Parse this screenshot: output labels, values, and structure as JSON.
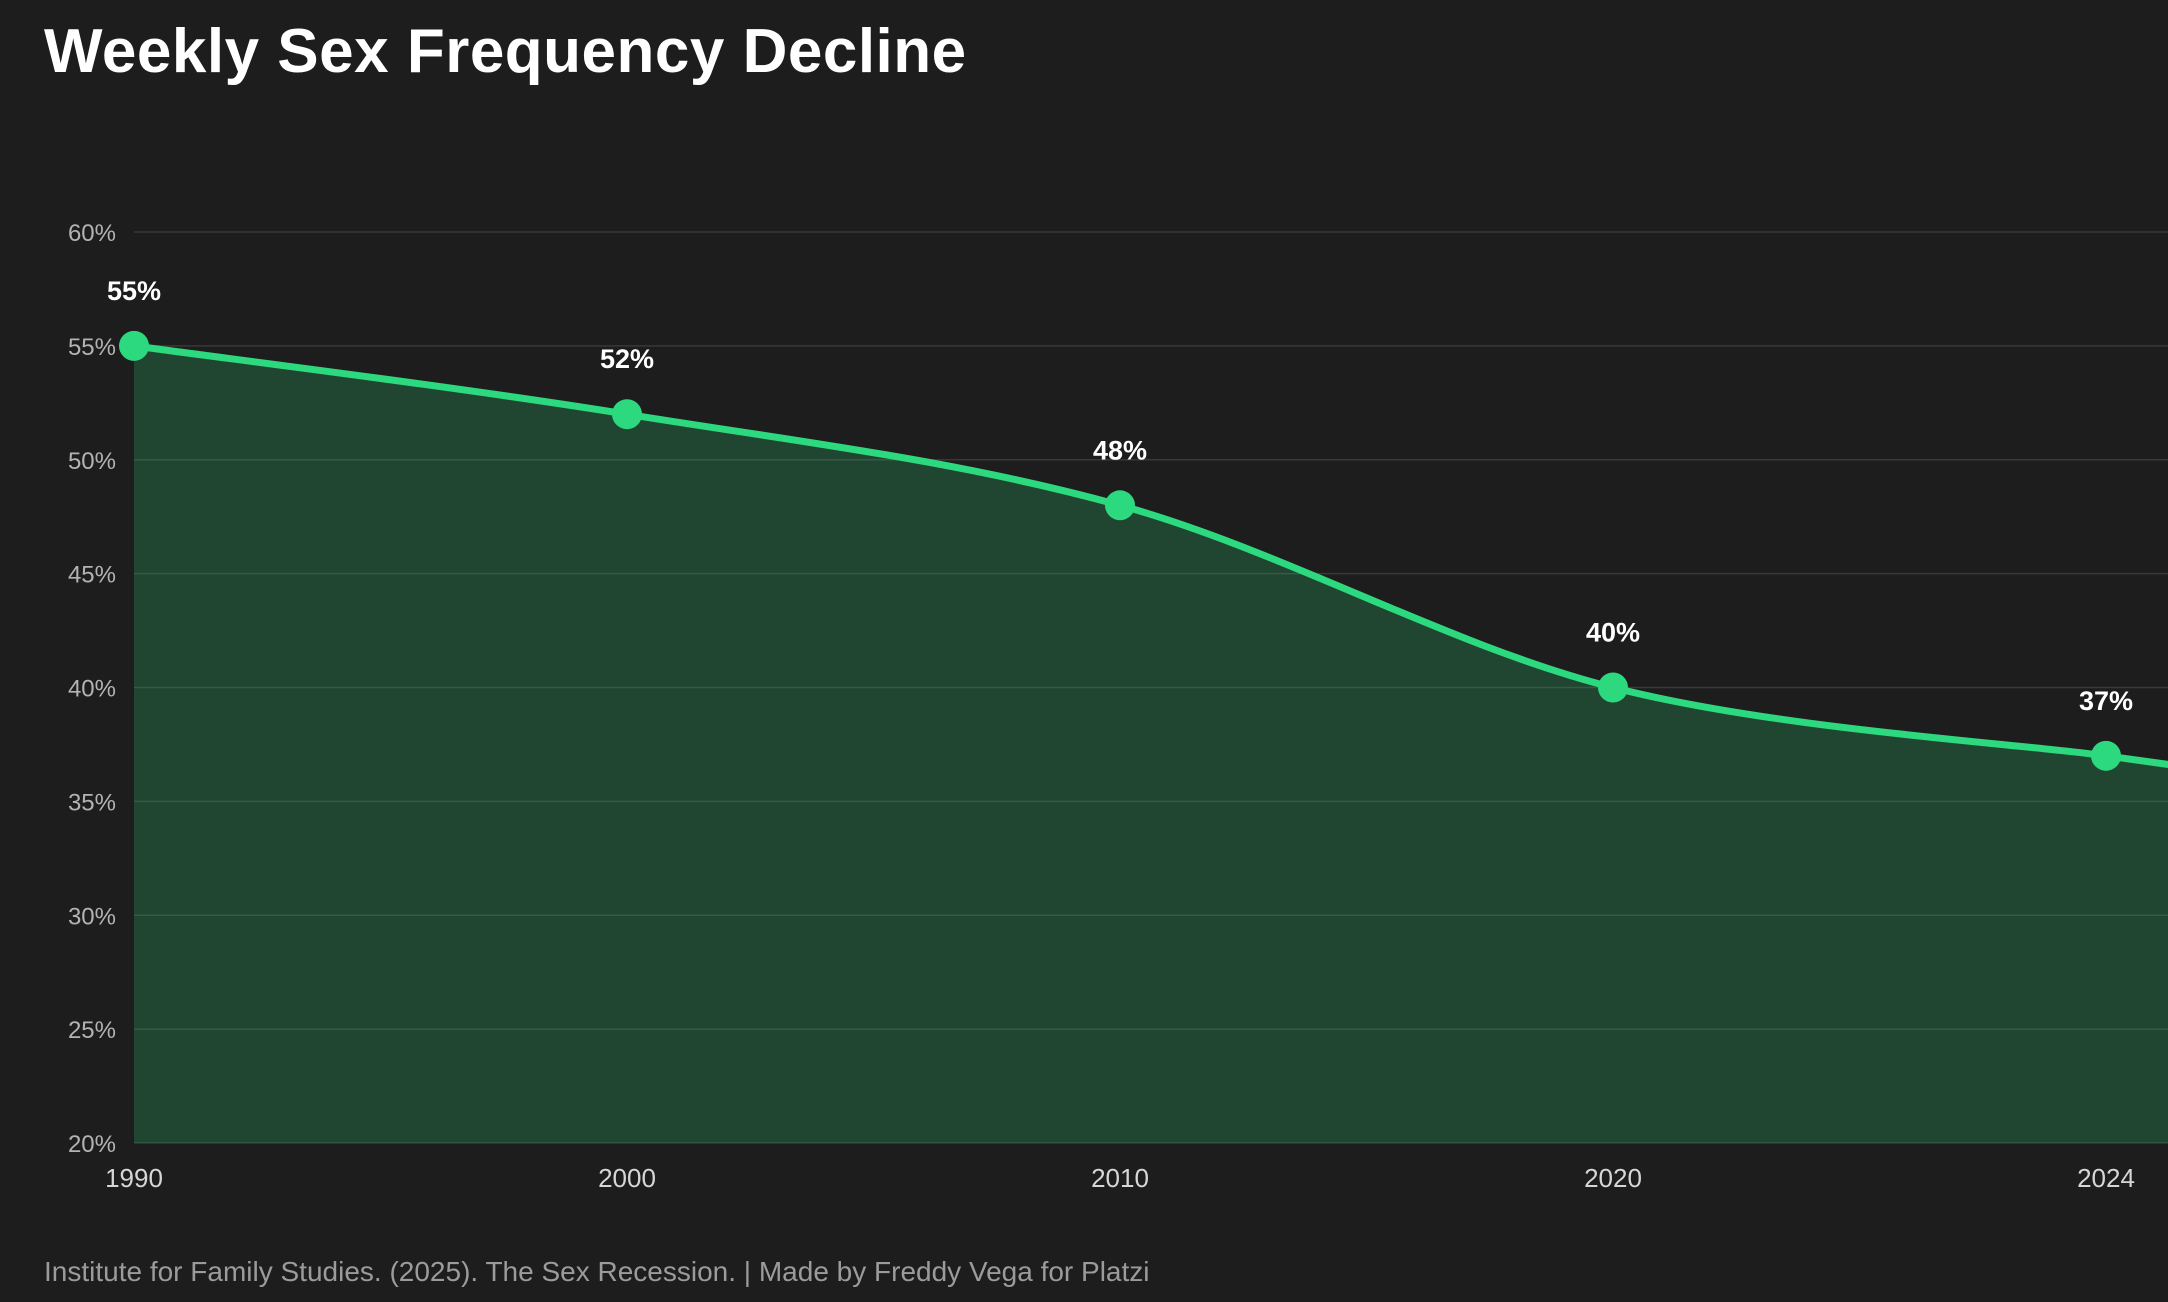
{
  "title": "Weekly Sex Frequency Decline",
  "footer": "Institute for Family Studies. (2025). The Sex Recession. | Made by Freddy Vega for Platzi",
  "chart_data": {
    "type": "line",
    "subtype": "area-filled-smooth",
    "title": "Weekly Sex Frequency Decline",
    "categories": [
      "1990",
      "2000",
      "2010",
      "2020",
      "2024"
    ],
    "values": [
      55,
      52,
      48,
      40,
      37
    ],
    "data_labels": [
      "55%",
      "52%",
      "48%",
      "40%",
      "37%"
    ],
    "xlabel": "",
    "ylabel": "",
    "ylim": [
      20,
      60
    ],
    "yticks": [
      20,
      25,
      30,
      35,
      40,
      45,
      50,
      55,
      60
    ],
    "ytick_labels": [
      "20%",
      "25%",
      "30%",
      "35%",
      "40%",
      "45%",
      "50%",
      "55%",
      "60%"
    ],
    "grid": true,
    "legend": "none",
    "colors": {
      "line": "#2dd97e",
      "marker": "#2dd97e",
      "fill": "#2dd97e",
      "fill_opacity": 0.22,
      "grid": "#383838",
      "y_axis_text": "#b3b3b3",
      "x_axis_text": "#d6d6d6",
      "data_label": "#ffffff",
      "background": "#1d1d1d",
      "title_text": "#ffffff",
      "footer_text": "#9b9b9b"
    }
  }
}
